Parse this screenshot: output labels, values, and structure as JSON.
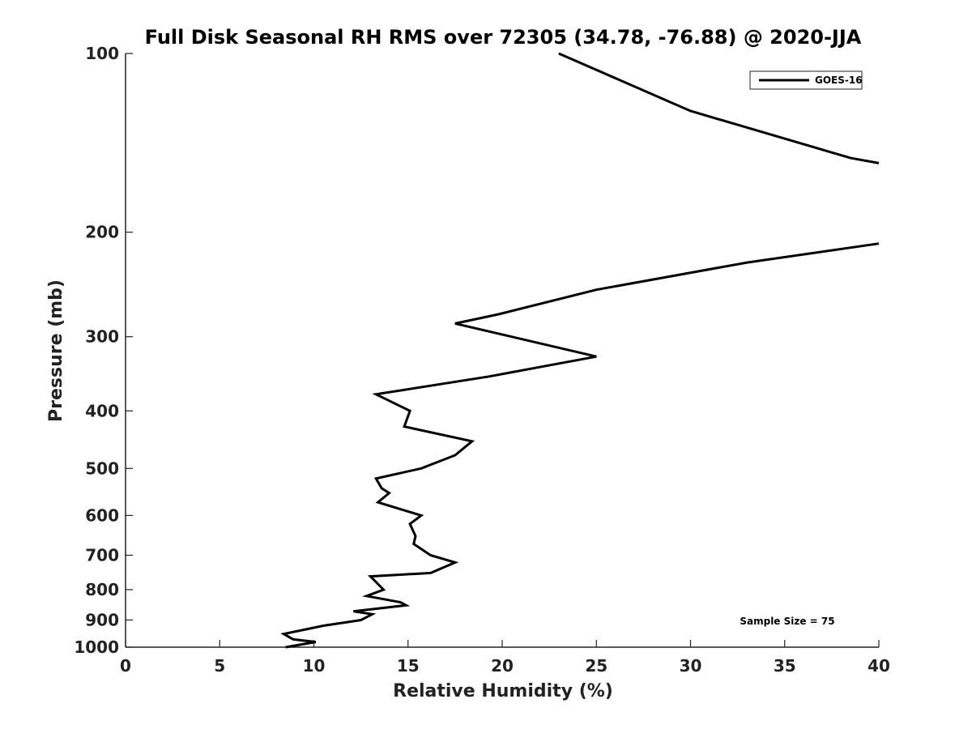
{
  "chart_data": {
    "type": "line",
    "title": "Full Disk Seasonal RH RMS over 72305 (34.78, -76.88) @ 2020-JJA",
    "xlabel": "Relative Humidity (%)",
    "ylabel": "Pressure (mb)",
    "xlim": [
      0,
      40
    ],
    "ylim": [
      100,
      1000
    ],
    "y_scale": "log",
    "grid": false,
    "x_ticks": [
      0,
      5,
      10,
      15,
      20,
      25,
      30,
      35,
      40
    ],
    "y_ticks": [
      100,
      200,
      300,
      400,
      500,
      600,
      700,
      800,
      900,
      1000
    ],
    "x_tick_labels": [
      "0",
      "5",
      "10",
      "15",
      "20",
      "25",
      "30",
      "35",
      "40"
    ],
    "y_tick_labels": [
      "100",
      "200",
      "300",
      "400",
      "500",
      "600",
      "700",
      "800",
      "900",
      "1000"
    ],
    "legend": {
      "position": "top-right",
      "entries": [
        "GOES-16"
      ]
    },
    "annotation": "Sample Size = 75",
    "series": [
      {
        "name": "GOES-16",
        "color": "#000000",
        "segments": [
          [
            [
              23.0,
              100
            ],
            [
              30.0,
              125
            ],
            [
              38.5,
              150
            ],
            [
              40.0,
              153
            ]
          ],
          [
            [
              40.0,
              209
            ],
            [
              33.0,
              225
            ],
            [
              25.0,
              250
            ],
            [
              19.8,
              275
            ],
            [
              17.5,
              285
            ],
            [
              20.5,
              300
            ],
            [
              25.0,
              324
            ],
            [
              19.3,
              350
            ],
            [
              13.3,
              375
            ],
            [
              15.1,
              400
            ],
            [
              14.8,
              425
            ],
            [
              18.4,
              450
            ],
            [
              17.5,
              475
            ],
            [
              15.7,
              500
            ],
            [
              13.3,
              520
            ],
            [
              13.6,
              540
            ],
            [
              14.0,
              550
            ],
            [
              13.4,
              570
            ],
            [
              15.7,
              600
            ],
            [
              15.1,
              620
            ],
            [
              15.4,
              650
            ],
            [
              15.3,
              670
            ],
            [
              16.2,
              700
            ],
            [
              17.5,
              720
            ],
            [
              16.2,
              750
            ],
            [
              13.0,
              760
            ],
            [
              13.7,
              800
            ],
            [
              12.8,
              820
            ],
            [
              14.6,
              840
            ],
            [
              14.9,
              850
            ],
            [
              12.1,
              870
            ],
            [
              13.1,
              880
            ],
            [
              12.5,
              900
            ],
            [
              10.5,
              920
            ],
            [
              8.4,
              950
            ],
            [
              8.9,
              970
            ],
            [
              10.1,
              980
            ],
            [
              8.5,
              1000
            ]
          ]
        ]
      }
    ]
  }
}
